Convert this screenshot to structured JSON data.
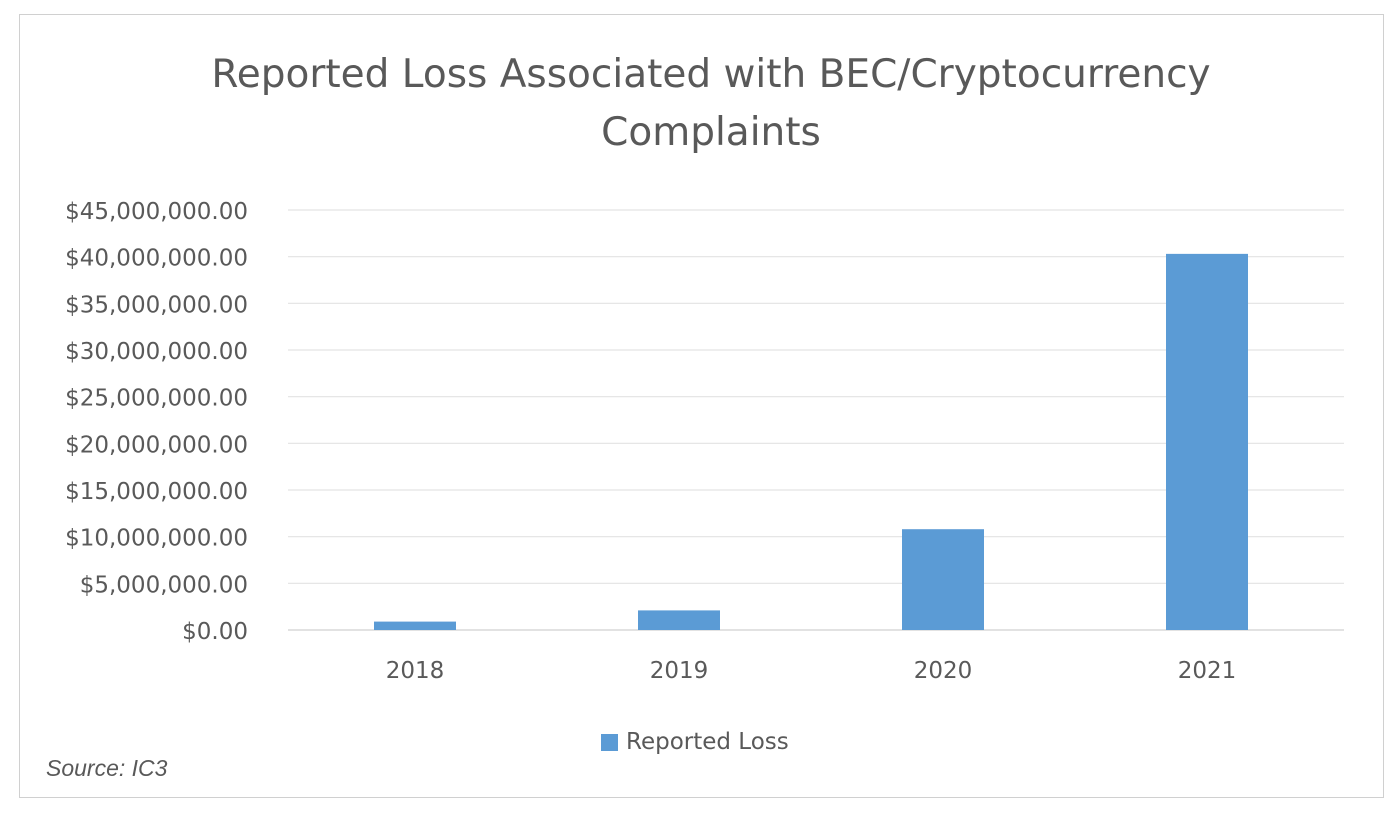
{
  "chart_data": {
    "type": "bar",
    "title": "Reported Loss Associated with BEC/Cryptocurrency Complaints",
    "categories": [
      "2018",
      "2019",
      "2020",
      "2021"
    ],
    "series": [
      {
        "name": "Reported Loss",
        "values": [
          900000,
          2100000,
          10800000,
          40300000
        ],
        "color": "#5b9bd5"
      }
    ],
    "ylim": [
      0,
      45000000
    ],
    "yticks": [
      0,
      5000000,
      10000000,
      15000000,
      20000000,
      25000000,
      30000000,
      35000000,
      40000000,
      45000000
    ],
    "ytick_labels": [
      "$0.00",
      "$5,000,000.00",
      "$10,000,000.00",
      "$15,000,000.00",
      "$20,000,000.00",
      "$25,000,000.00",
      "$30,000,000.00",
      "$35,000,000.00",
      "$40,000,000.00",
      "$45,000,000.00"
    ],
    "grid": true,
    "legend_position": "bottom"
  },
  "source_note": "Source: IC3"
}
